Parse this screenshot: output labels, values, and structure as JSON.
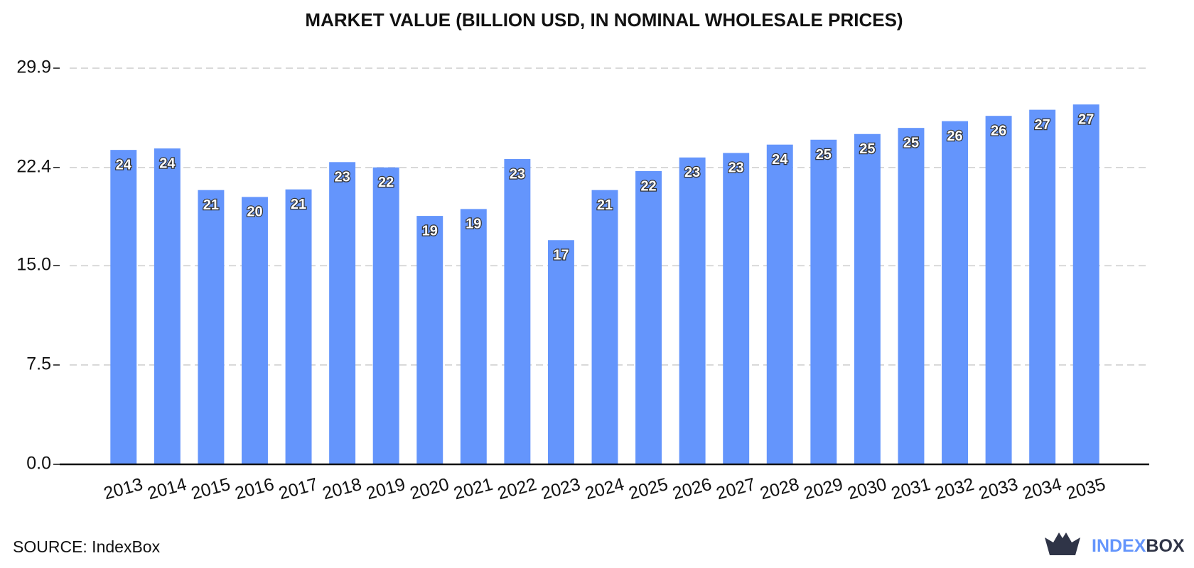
{
  "chart_data": {
    "type": "bar",
    "title": "MARKET VALUE (BILLION USD, IN NOMINAL WHOLESALE PRICES)",
    "categories": [
      "2013",
      "2014",
      "2015",
      "2016",
      "2017",
      "2018",
      "2019",
      "2020",
      "2021",
      "2022",
      "2023",
      "2024",
      "2025",
      "2026",
      "2027",
      "2028",
      "2029",
      "2030",
      "2031",
      "2032",
      "2033",
      "2034",
      "2035"
    ],
    "values": [
      23.73,
      23.84,
      20.7,
      20.18,
      20.75,
      22.81,
      22.41,
      18.75,
      19.27,
      23.04,
      16.92,
      20.7,
      22.13,
      23.16,
      23.5,
      24.13,
      24.5,
      24.93,
      25.39,
      25.9,
      26.3,
      26.76,
      27.16
    ],
    "value_labels": [
      "24",
      "24",
      "21",
      "20",
      "21",
      "23",
      "22",
      "19",
      "19",
      "23",
      "17",
      "21",
      "22",
      "23",
      "23",
      "24",
      "25",
      "25",
      "25",
      "26",
      "26",
      "27",
      "27"
    ],
    "color": "#6495fc",
    "ylim": [
      0,
      29.9
    ],
    "yticks": [
      {
        "value": 0,
        "label": "0.0"
      },
      7.5,
      {
        "value": 15,
        "label": "15.0"
      },
      22.4,
      29.9
    ],
    "grid": true,
    "source": "SOURCE: IndexBox",
    "logo": {
      "first": "INDEX",
      "second": "BOX"
    }
  }
}
